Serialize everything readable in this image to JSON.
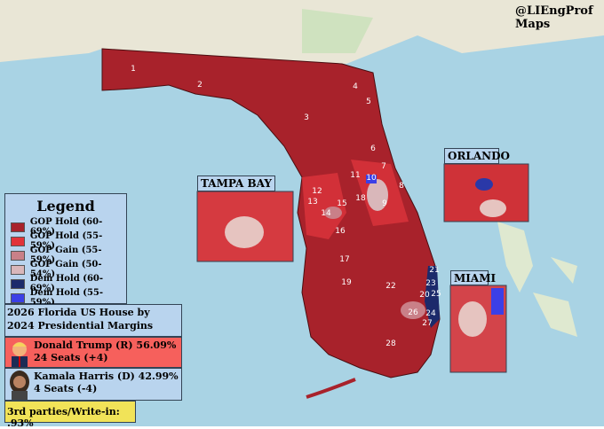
{
  "header": {
    "handle": "@LIEngProf",
    "subtitle": "Maps"
  },
  "insets": {
    "tampa": "TAMPA BAY",
    "orlando": "ORLANDO",
    "miami": "MIAMI"
  },
  "legend": {
    "title": "Legend",
    "items": [
      {
        "label": "GOP Hold (60-69%)",
        "color": "#a8222b"
      },
      {
        "label": "GOP Hold (55-59%)",
        "color": "#e2333a"
      },
      {
        "label": "GOP Gain (55-59%)",
        "color": "#c98088"
      },
      {
        "label": "GOP Gain (50-54%)",
        "color": "#d9b7ba"
      },
      {
        "label": "Dem Hold (60-69%)",
        "color": "#1c2a6b"
      },
      {
        "label": "Dem Hold (55-59%)",
        "color": "#3b3fe6"
      }
    ]
  },
  "summary": {
    "title": "2026 Florida US House by 2024 Presidential Margins",
    "candidates": [
      {
        "name": "Donald Trump (R) 56.09%",
        "seats": "24 Seats (+4)"
      },
      {
        "name": "Kamala Harris (D) 42.99%",
        "seats": "4 Seats (-4)"
      }
    ],
    "other": "3rd parties/Write-in: .93%"
  },
  "districts": [
    "1",
    "2",
    "3",
    "4",
    "5",
    "6",
    "7",
    "8",
    "9",
    "10",
    "11",
    "12",
    "13",
    "14",
    "15",
    "16",
    "17",
    "18",
    "19",
    "20",
    "21",
    "22",
    "23",
    "24",
    "25",
    "26",
    "27",
    "28"
  ]
}
